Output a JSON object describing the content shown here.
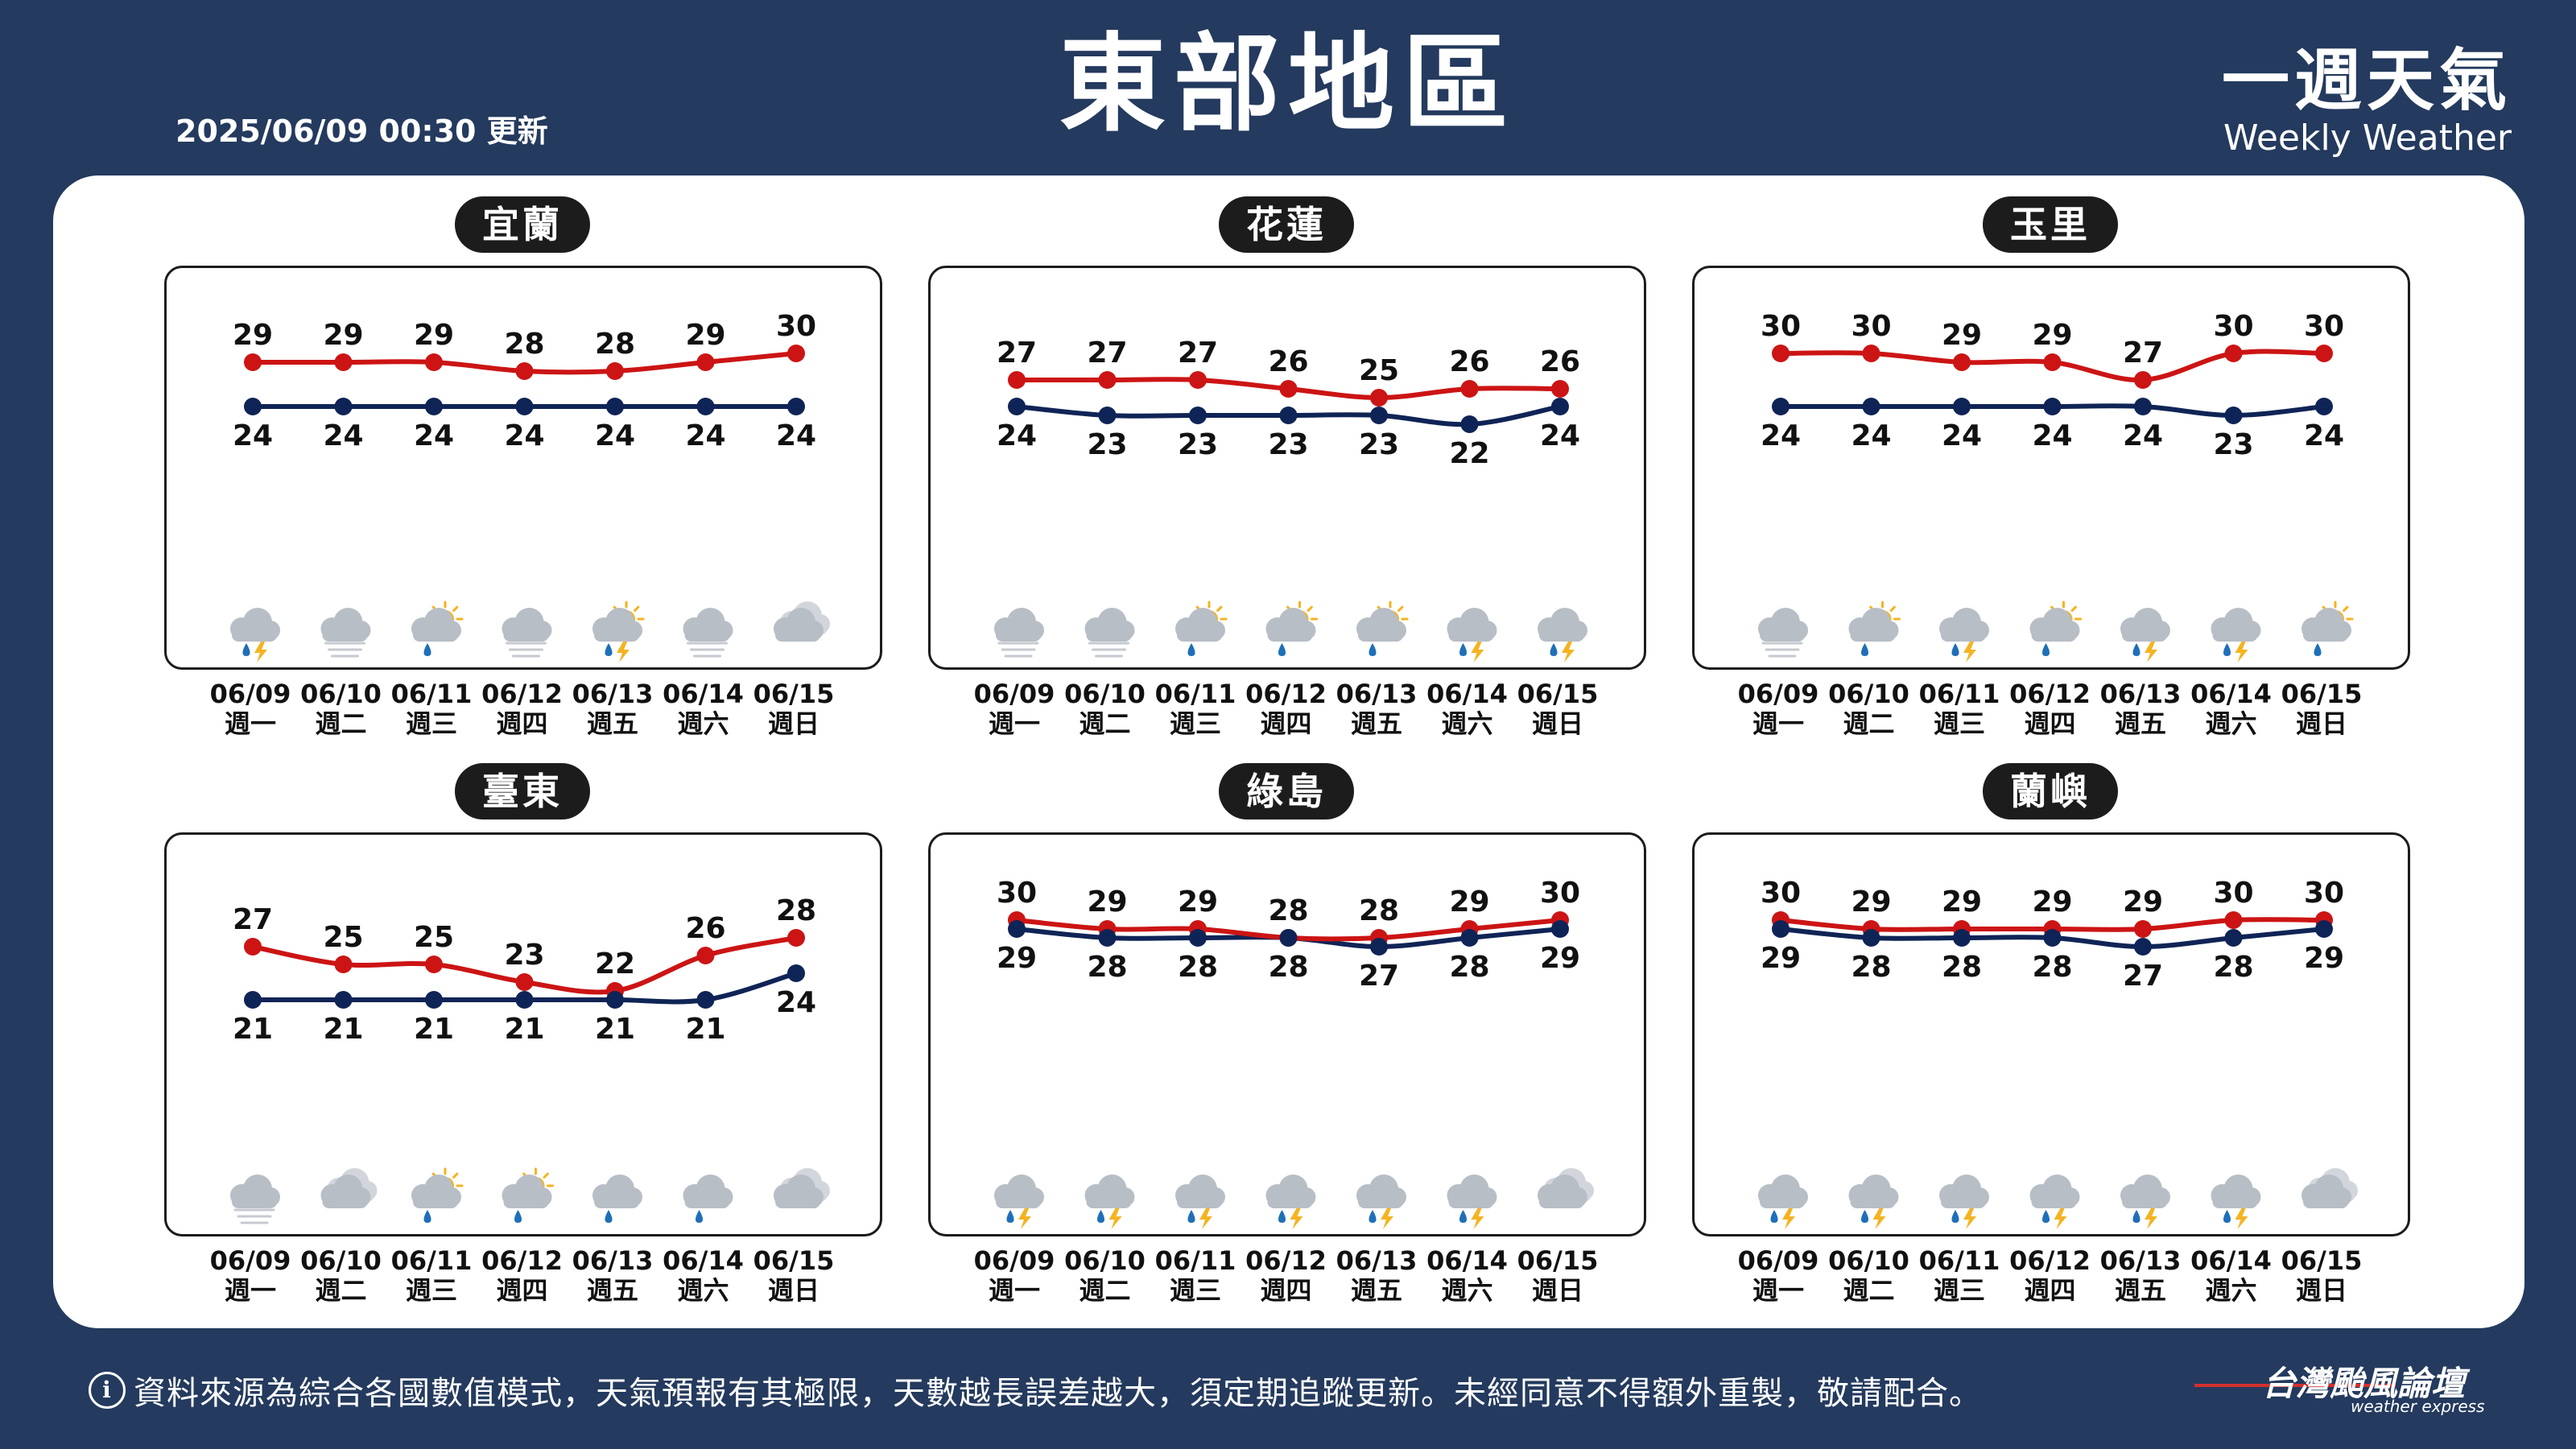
{
  "header": {
    "title": "東部地區",
    "updated": "2025/06/09 00:30 更新",
    "brand_zh": "一週天氣",
    "brand_en": "Weekly Weather"
  },
  "footer": {
    "note": "資料來源為綜合各國數值模式，天氣預報有其極限，天數越長誤差越大，須定期追蹤更新。未經同意不得額外重製，敬請配合。",
    "logo_zh": "台灣颱風論壇",
    "logo_en": "weather express"
  },
  "colors": {
    "high": "#cc1414",
    "low": "#0f2456",
    "background": "#243a5e"
  },
  "days": [
    {
      "date": "06/09",
      "weekday": "週一"
    },
    {
      "date": "06/10",
      "weekday": "週二"
    },
    {
      "date": "06/11",
      "weekday": "週三"
    },
    {
      "date": "06/12",
      "weekday": "週四"
    },
    {
      "date": "06/13",
      "weekday": "週五"
    },
    {
      "date": "06/14",
      "weekday": "週六"
    },
    {
      "date": "06/15",
      "weekday": "週日"
    }
  ],
  "chart_data": [
    {
      "type": "line",
      "location": "宜蘭",
      "categories": [
        "06/09",
        "06/10",
        "06/11",
        "06/12",
        "06/13",
        "06/14",
        "06/15"
      ],
      "series": [
        {
          "values": [
            29,
            29,
            29,
            28,
            28,
            29,
            30
          ]
        },
        {
          "values": [
            24,
            24,
            24,
            24,
            24,
            24,
            24
          ]
        }
      ],
      "icons": [
        "thunder-rain-icon",
        "fog-icon",
        "partly-sunny-rain-icon",
        "fog-icon",
        "partly-sunny-thunder-icon",
        "fog-icon",
        "cloudy-icon"
      ]
    },
    {
      "type": "line",
      "location": "花蓮",
      "categories": [
        "06/09",
        "06/10",
        "06/11",
        "06/12",
        "06/13",
        "06/14",
        "06/15"
      ],
      "series": [
        {
          "values": [
            27,
            27,
            27,
            26,
            25,
            26,
            26
          ]
        },
        {
          "values": [
            24,
            23,
            23,
            23,
            23,
            22,
            24
          ]
        }
      ],
      "icons": [
        "fog-icon",
        "fog-icon",
        "partly-sunny-rain-icon",
        "partly-sunny-rain-icon",
        "partly-sunny-rain-icon",
        "thunder-rain-icon",
        "thunder-rain-icon"
      ]
    },
    {
      "type": "line",
      "location": "玉里",
      "categories": [
        "06/09",
        "06/10",
        "06/11",
        "06/12",
        "06/13",
        "06/14",
        "06/15"
      ],
      "series": [
        {
          "values": [
            30,
            30,
            29,
            29,
            27,
            30,
            30
          ]
        },
        {
          "values": [
            24,
            24,
            24,
            24,
            24,
            23,
            24
          ]
        }
      ],
      "icons": [
        "fog-icon",
        "partly-sunny-rain-icon",
        "thunder-rain-icon",
        "partly-sunny-rain-icon",
        "thunder-rain-icon",
        "thunder-rain-icon",
        "partly-sunny-rain-icon"
      ]
    },
    {
      "type": "line",
      "location": "臺東",
      "categories": [
        "06/09",
        "06/10",
        "06/11",
        "06/12",
        "06/13",
        "06/14",
        "06/15"
      ],
      "series": [
        {
          "values": [
            27,
            25,
            25,
            23,
            22,
            26,
            28
          ]
        },
        {
          "values": [
            21,
            21,
            21,
            21,
            21,
            21,
            24
          ]
        }
      ],
      "icons": [
        "fog-icon",
        "cloudy-icon",
        "partly-sunny-rain-icon",
        "partly-sunny-rain-icon",
        "rain-icon",
        "rain-icon",
        "cloudy-icon"
      ]
    },
    {
      "type": "line",
      "location": "綠島",
      "categories": [
        "06/09",
        "06/10",
        "06/11",
        "06/12",
        "06/13",
        "06/14",
        "06/15"
      ],
      "series": [
        {
          "values": [
            30,
            29,
            29,
            28,
            28,
            29,
            30
          ]
        },
        {
          "values": [
            29,
            28,
            28,
            28,
            27,
            28,
            29
          ]
        }
      ],
      "icons": [
        "thunder-rain-icon",
        "thunder-rain-icon",
        "thunder-rain-icon",
        "thunder-rain-icon",
        "thunder-rain-icon",
        "thunder-rain-icon",
        "cloudy-icon"
      ]
    },
    {
      "type": "line",
      "location": "蘭嶼",
      "categories": [
        "06/09",
        "06/10",
        "06/11",
        "06/12",
        "06/13",
        "06/14",
        "06/15"
      ],
      "series": [
        {
          "values": [
            30,
            29,
            29,
            29,
            29,
            30,
            30
          ]
        },
        {
          "values": [
            29,
            28,
            28,
            28,
            27,
            28,
            29
          ]
        }
      ],
      "icons": [
        "thunder-rain-icon",
        "thunder-rain-icon",
        "thunder-rain-icon",
        "thunder-rain-icon",
        "thunder-rain-icon",
        "thunder-rain-icon",
        "cloudy-icon"
      ]
    }
  ]
}
